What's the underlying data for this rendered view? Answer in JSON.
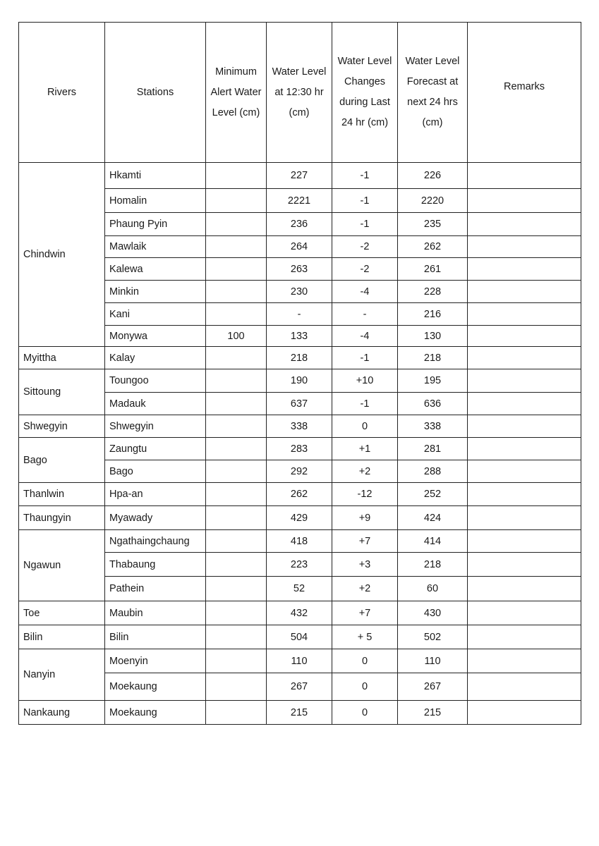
{
  "headers": {
    "rivers": "Rivers",
    "stations": "Stations",
    "min_alert": "Minimum Alert Water Level (cm)",
    "level": "Water Level at 12:30 hr (cm)",
    "change": "Water Level Changes during Last 24 hr (cm)",
    "forecast": "Water Level Forecast at next 24 hrs (cm)",
    "remarks": "Remarks"
  },
  "groups": [
    {
      "river": "Chindwin",
      "stations": [
        {
          "name": "Hkamti",
          "min_alert": "",
          "level": "227",
          "change": "-1",
          "forecast": "226",
          "remarks": ""
        },
        {
          "name": "Homalin",
          "min_alert": "",
          "level": "2221",
          "change": "-1",
          "forecast": "2220",
          "remarks": ""
        },
        {
          "name": "Phaung Pyin",
          "min_alert": "",
          "level": "236",
          "change": "-1",
          "forecast": "235",
          "remarks": ""
        },
        {
          "name": "Mawlaik",
          "min_alert": "",
          "level": "264",
          "change": "-2",
          "forecast": "262",
          "remarks": ""
        },
        {
          "name": "Kalewa",
          "min_alert": "",
          "level": "263",
          "change": "-2",
          "forecast": "261",
          "remarks": ""
        },
        {
          "name": "Minkin",
          "min_alert": "",
          "level": "230",
          "change": "-4",
          "forecast": "228",
          "remarks": ""
        },
        {
          "name": "Kani",
          "min_alert": "",
          "level": "-",
          "change": "-",
          "forecast": "216",
          "remarks": ""
        },
        {
          "name": "Monywa",
          "min_alert": "100",
          "level": "133",
          "change": "-4",
          "forecast": "130",
          "remarks": ""
        }
      ]
    },
    {
      "river": "Myittha",
      "stations": [
        {
          "name": "Kalay",
          "min_alert": "",
          "level": "218",
          "change": "-1",
          "forecast": "218",
          "remarks": ""
        }
      ]
    },
    {
      "river": "Sittoung",
      "stations": [
        {
          "name": "Toungoo",
          "min_alert": "",
          "level": "190",
          "change": "+10",
          "forecast": "195",
          "remarks": ""
        },
        {
          "name": "Madauk",
          "min_alert": "",
          "level": "637",
          "change": "-1",
          "forecast": "636",
          "remarks": ""
        }
      ]
    },
    {
      "river": "Shwegyin",
      "stations": [
        {
          "name": "Shwegyin",
          "min_alert": "",
          "level": "338",
          "change": "0",
          "forecast": "338",
          "remarks": ""
        }
      ]
    },
    {
      "river": "Bago",
      "stations": [
        {
          "name": "Zaungtu",
          "min_alert": "",
          "level": "283",
          "change": "+1",
          "forecast": "281",
          "remarks": ""
        },
        {
          "name": "Bago",
          "min_alert": "",
          "level": "292",
          "change": "+2",
          "forecast": "288",
          "remarks": ""
        }
      ]
    },
    {
      "river": "Thanlwin",
      "stations": [
        {
          "name": "Hpa-an",
          "min_alert": "",
          "level": "262",
          "change": "-12",
          "forecast": "252",
          "remarks": ""
        }
      ]
    },
    {
      "river": "Thaungyin",
      "stations": [
        {
          "name": "Myawady",
          "min_alert": "",
          "level": "429",
          "change": "+9",
          "forecast": "424",
          "remarks": ""
        }
      ]
    },
    {
      "river": "Ngawun",
      "stations": [
        {
          "name": "Ngathaingchaung",
          "min_alert": "",
          "level": "418",
          "change": "+7",
          "forecast": "414",
          "remarks": ""
        },
        {
          "name": "Thabaung",
          "min_alert": "",
          "level": "223",
          "change": "+3",
          "forecast": "218",
          "remarks": ""
        },
        {
          "name": "Pathein",
          "min_alert": "",
          "level": "52",
          "change": "+2",
          "forecast": "60",
          "remarks": ""
        }
      ]
    },
    {
      "river": "Toe",
      "stations": [
        {
          "name": "Maubin",
          "min_alert": "",
          "level": "432",
          "change": "+7",
          "forecast": "430",
          "remarks": ""
        }
      ]
    },
    {
      "river": "Bilin",
      "stations": [
        {
          "name": "Bilin",
          "min_alert": "",
          "level": "504",
          "change": "+ 5",
          "forecast": "502",
          "remarks": ""
        }
      ]
    },
    {
      "river": "Nanyin",
      "stations": [
        {
          "name": "Moenyin",
          "min_alert": "",
          "level": "110",
          "change": "0",
          "forecast": "110",
          "remarks": ""
        },
        {
          "name": "Moekaung",
          "min_alert": "",
          "level": "267",
          "change": "0",
          "forecast": "267",
          "remarks": ""
        }
      ]
    },
    {
      "river": "Nankaung",
      "stations": [
        {
          "name": "Moekaung",
          "min_alert": "",
          "level": "215",
          "change": "0",
          "forecast": "215",
          "remarks": ""
        }
      ]
    }
  ]
}
